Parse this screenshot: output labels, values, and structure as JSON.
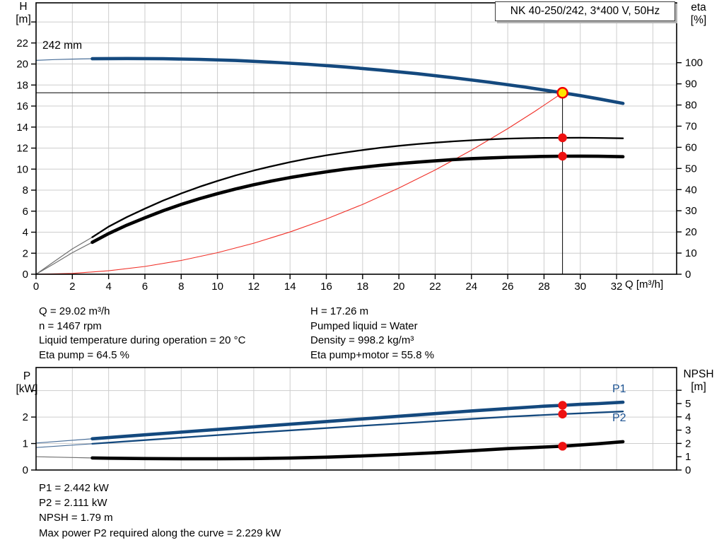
{
  "title_box": {
    "text": "NK 40-250/242, 3*400 V, 50Hz"
  },
  "top_chart": {
    "left_axis": {
      "quantity": "H",
      "unit": "[m]"
    },
    "right_axis": {
      "quantity": "eta",
      "unit": "[%]"
    },
    "x_axis_label": "Q [m³/h]",
    "curve_label": "242 mm"
  },
  "bottom_chart": {
    "left_axis": {
      "quantity": "P",
      "unit": "[kW]"
    },
    "right_axis": {
      "quantity": "NPSH",
      "unit": "[m]"
    },
    "p1_label": "P1",
    "p2_label": "P2"
  },
  "info_top": {
    "left_lines": [
      "Q = 29.02 m³/h",
      "n = 1467 rpm",
      "Liquid temperature during operation = 20 °C",
      "Eta pump = 64.5 %"
    ],
    "right_lines": [
      "H = 17.26 m",
      "Pumped liquid = Water",
      "Density = 998.2 kg/m³",
      "Eta pump+motor = 55.8 %"
    ]
  },
  "info_bottom": {
    "lines": [
      "P1 = 2.442 kW",
      "P2 = 2.111 kW",
      "NPSH = 1.79 m",
      "Max power P2 required along the curve = 2.229 kW"
    ]
  },
  "colors": {
    "curve_blue": "#14497e",
    "label_blue": "#1c5291",
    "black": "#000000",
    "red_curve": "#f03028",
    "dot_red": "#ee1111",
    "duty_fill": "#ffe600",
    "duty_ring": "#f20000",
    "grid": "#cdcdcd",
    "lead_blue": "#4a6f99",
    "lead_gray": "#6f6f6f"
  },
  "chart_data": [
    {
      "type": "line",
      "name": "h-q-eta-chart",
      "title": "NK 40-250/242, 3*400 V, 50Hz",
      "xlabel": "Q [m³/h]",
      "ylabel_left": "H [m]",
      "ylabel_right": "eta [%]",
      "xlim": [
        0,
        35.31
      ],
      "ylim_left": [
        0,
        25.82
      ],
      "ylim_right": [
        0,
        128.3
      ],
      "grid": {
        "x": [
          2,
          4,
          6,
          8,
          10,
          12,
          14,
          16,
          18,
          20,
          22,
          24,
          26,
          28,
          30,
          32,
          34
        ],
        "y_left": [
          2,
          4,
          6,
          8,
          10,
          12,
          14,
          16,
          18,
          20,
          22,
          24
        ]
      },
      "x_ticks": [
        0,
        2,
        4,
        6,
        8,
        10,
        12,
        14,
        16,
        18,
        20,
        22,
        24,
        26,
        28,
        30,
        32
      ],
      "y_ticks_left": [
        0,
        2,
        4,
        6,
        8,
        10,
        12,
        14,
        16,
        18,
        20,
        22
      ],
      "y_ticks_left_unlabeled": [
        24
      ],
      "y_ticks_right": [
        0,
        10,
        20,
        30,
        40,
        50,
        60,
        70,
        80,
        90,
        100
      ],
      "y_ticks_right_unlabeled": [],
      "series": [
        {
          "id": "affinity-parabola",
          "name": "Affinity parabola through duty point",
          "axis": "left",
          "color": "#f03028",
          "width": 1.1,
          "points": [
            [
              0,
              0
            ],
            [
              2,
              0.08
            ],
            [
              4,
              0.33
            ],
            [
              6,
              0.74
            ],
            [
              8,
              1.31
            ],
            [
              10,
              2.05
            ],
            [
              12,
              2.95
            ],
            [
              14,
              4.02
            ],
            [
              16,
              5.25
            ],
            [
              18,
              6.64
            ],
            [
              20,
              8.2
            ],
            [
              22,
              9.92
            ],
            [
              24,
              11.8
            ],
            [
              26,
              13.85
            ],
            [
              27.5,
              15.5
            ],
            [
              29.02,
              17.26
            ]
          ]
        },
        {
          "id": "eta-pump",
          "name": "Eta pump curve",
          "axis": "right",
          "color": "#000000",
          "width": 2.3,
          "lead_until": 3.1,
          "lead_color": "#6f6f6f",
          "lead_width": 1.2,
          "points": [
            [
              0,
              0
            ],
            [
              1,
              6
            ],
            [
              2,
              12
            ],
            [
              3.1,
              17.5
            ],
            [
              4,
              22.5
            ],
            [
              5,
              27
            ],
            [
              6,
              31
            ],
            [
              7,
              34.8
            ],
            [
              8,
              38.2
            ],
            [
              9,
              41.3
            ],
            [
              10,
              44.1
            ],
            [
              11,
              46.7
            ],
            [
              12,
              49
            ],
            [
              13,
              51.1
            ],
            [
              14,
              53
            ],
            [
              15,
              54.7
            ],
            [
              16,
              56.2
            ],
            [
              17,
              57.5
            ],
            [
              18,
              58.7
            ],
            [
              19,
              59.8
            ],
            [
              20,
              60.7
            ],
            [
              21,
              61.5
            ],
            [
              22,
              62.2
            ],
            [
              23,
              62.8
            ],
            [
              24,
              63.3
            ],
            [
              25,
              63.75
            ],
            [
              26,
              64.1
            ],
            [
              27,
              64.33
            ],
            [
              28,
              64.45
            ],
            [
              29.02,
              64.5
            ],
            [
              30,
              64.52
            ],
            [
              31,
              64.45
            ],
            [
              32.35,
              64.25
            ]
          ]
        },
        {
          "id": "eta-pump-motor",
          "name": "Eta pump+motor curve",
          "axis": "right",
          "color": "#000000",
          "width": 4.6,
          "lead_until": 3.1,
          "lead_color": "#6f6f6f",
          "lead_width": 1.2,
          "points": [
            [
              0,
              0
            ],
            [
              1,
              5
            ],
            [
              2,
              10.2
            ],
            [
              3.1,
              15.1
            ],
            [
              4,
              19.2
            ],
            [
              5,
              23.2
            ],
            [
              6,
              26.7
            ],
            [
              7,
              30
            ],
            [
              8,
              33
            ],
            [
              9,
              35.7
            ],
            [
              10,
              38.1
            ],
            [
              11,
              40.3
            ],
            [
              12,
              42.3
            ],
            [
              13,
              44.1
            ],
            [
              14,
              45.7
            ],
            [
              15,
              47.1
            ],
            [
              16,
              48.4
            ],
            [
              17,
              49.6
            ],
            [
              18,
              50.6
            ],
            [
              19,
              51.5
            ],
            [
              20,
              52.3
            ],
            [
              21,
              53
            ],
            [
              22,
              53.6
            ],
            [
              23,
              54.2
            ],
            [
              24,
              54.65
            ],
            [
              25,
              55
            ],
            [
              26,
              55.3
            ],
            [
              27,
              55.5
            ],
            [
              28,
              55.7
            ],
            [
              29.02,
              55.8
            ],
            [
              30,
              55.82
            ],
            [
              31,
              55.75
            ],
            [
              32.35,
              55.55
            ]
          ]
        },
        {
          "id": "h-curve",
          "name": "H curve, 242 mm impeller",
          "axis": "left",
          "color": "#14497e",
          "width": 4.6,
          "lead_until": 3.1,
          "lead_color": "#4a6f99",
          "lead_width": 1.2,
          "points": [
            [
              0,
              20.35
            ],
            [
              1,
              20.42
            ],
            [
              2,
              20.47
            ],
            [
              3.1,
              20.5
            ],
            [
              5,
              20.52
            ],
            [
              7,
              20.5
            ],
            [
              9,
              20.44
            ],
            [
              11,
              20.33
            ],
            [
              13,
              20.17
            ],
            [
              15,
              19.97
            ],
            [
              17,
              19.72
            ],
            [
              19,
              19.42
            ],
            [
              21,
              19.08
            ],
            [
              23,
              18.69
            ],
            [
              25,
              18.26
            ],
            [
              26,
              18.03
            ],
            [
              27,
              17.79
            ],
            [
              28,
              17.53
            ],
            [
              29.02,
              17.26
            ],
            [
              30,
              16.99
            ],
            [
              31,
              16.69
            ],
            [
              32.35,
              16.25
            ]
          ]
        }
      ],
      "reference_lines": [
        {
          "orientation": "horizontal",
          "axis": "left",
          "value": 17.26,
          "q_from": 0,
          "q_to": 29.02
        },
        {
          "orientation": "vertical",
          "axis": "left",
          "q": 29.02,
          "value_from": 0,
          "value_to": 17.26
        }
      ],
      "markers": [
        {
          "q": 29.02,
          "value": 17.26,
          "axis": "left",
          "style": "duty-point"
        },
        {
          "q": 29.02,
          "value": 64.5,
          "axis": "right",
          "style": "dot"
        },
        {
          "q": 29.02,
          "value": 55.8,
          "axis": "right",
          "style": "dot"
        }
      ]
    },
    {
      "type": "line",
      "name": "power-npsh-chart",
      "xlabel": "",
      "ylabel_left": "P [kW]",
      "ylabel_right": "NPSH [m]",
      "xlim": [
        0,
        35.31
      ],
      "ylim_left": [
        0,
        3.87
      ],
      "ylim_right": [
        0,
        7.71
      ],
      "grid": {
        "x": [
          2,
          4,
          6,
          8,
          10,
          12,
          14,
          16,
          18,
          20,
          22,
          24,
          26,
          28,
          30,
          32,
          34
        ],
        "y_left": [
          1,
          2,
          3
        ]
      },
      "x_ticks": [],
      "y_ticks_left": [
        0,
        1,
        2
      ],
      "y_ticks_left_unlabeled": [
        3
      ],
      "y_ticks_right": [
        0,
        1,
        2,
        3,
        4,
        5
      ],
      "y_ticks_right_unlabeled": [
        6
      ],
      "series": [
        {
          "id": "npsh-curve",
          "name": "NPSH curve",
          "axis": "right",
          "color": "#000000",
          "width": 4.6,
          "lead_until": 3.1,
          "lead_color": "#6f6f6f",
          "lead_width": 1.2,
          "points": [
            [
              0,
              1.0
            ],
            [
              2,
              0.94
            ],
            [
              3.1,
              0.91
            ],
            [
              4,
              0.89
            ],
            [
              6,
              0.86
            ],
            [
              8,
              0.845
            ],
            [
              10,
              0.845
            ],
            [
              12,
              0.86
            ],
            [
              14,
              0.9
            ],
            [
              16,
              0.97
            ],
            [
              18,
              1.06
            ],
            [
              20,
              1.17
            ],
            [
              22,
              1.3
            ],
            [
              24,
              1.45
            ],
            [
              26,
              1.61
            ],
            [
              28,
              1.73
            ],
            [
              29.02,
              1.79
            ],
            [
              30,
              1.88
            ],
            [
              31,
              1.98
            ],
            [
              32.35,
              2.13
            ]
          ]
        },
        {
          "id": "p2-curve",
          "name": "P2 power curve",
          "axis": "left",
          "color": "#14497e",
          "width": 2.3,
          "lead_until": 3.1,
          "lead_color": "#4a6f99",
          "lead_width": 1.2,
          "points": [
            [
              0,
              0.85
            ],
            [
              3.1,
              0.99
            ],
            [
              6,
              1.13
            ],
            [
              9,
              1.27
            ],
            [
              12,
              1.41
            ],
            [
              15,
              1.54
            ],
            [
              18,
              1.67
            ],
            [
              21,
              1.8
            ],
            [
              24,
              1.93
            ],
            [
              26,
              2.01
            ],
            [
              28,
              2.08
            ],
            [
              29.02,
              2.111
            ],
            [
              30,
              2.14
            ],
            [
              31,
              2.17
            ],
            [
              32.35,
              2.21
            ]
          ]
        },
        {
          "id": "p1-curve",
          "name": "P1 power curve",
          "axis": "left",
          "color": "#14497e",
          "width": 4.6,
          "lead_until": 3.1,
          "lead_color": "#4a6f99",
          "lead_width": 1.2,
          "points": [
            [
              0,
              1.02
            ],
            [
              3.1,
              1.18
            ],
            [
              6,
              1.33
            ],
            [
              9,
              1.48
            ],
            [
              12,
              1.63
            ],
            [
              15,
              1.78
            ],
            [
              18,
              1.93
            ],
            [
              21,
              2.08
            ],
            [
              24,
              2.23
            ],
            [
              26,
              2.32
            ],
            [
              28,
              2.41
            ],
            [
              29.02,
              2.442
            ],
            [
              30,
              2.48
            ],
            [
              31,
              2.51
            ],
            [
              32.35,
              2.56
            ]
          ]
        }
      ],
      "reference_lines": [],
      "markers": [
        {
          "q": 29.02,
          "value": 2.442,
          "axis": "left",
          "style": "dot"
        },
        {
          "q": 29.02,
          "value": 2.111,
          "axis": "left",
          "style": "dot"
        },
        {
          "q": 29.02,
          "value": 1.79,
          "axis": "right",
          "style": "dot"
        }
      ]
    }
  ]
}
